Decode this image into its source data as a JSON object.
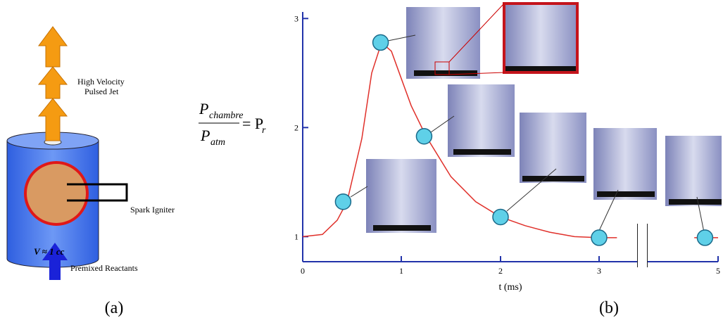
{
  "diagram": {
    "jet_label_line1": "High Velocity",
    "jet_label_line2": "Pulsed Jet",
    "igniter_label": "Spark Igniter",
    "volume_label": "V ≈ 1 cc",
    "reactants_label": "Premixed Reactants",
    "panel_label": "(a)"
  },
  "equation": {
    "numerator": "P",
    "numerator_sub": "chambre",
    "denominator": "P",
    "denominator_sub": "atm",
    "rhs": "= P",
    "rhs_sub": "r"
  },
  "chart_data": {
    "type": "line",
    "panel_label": "(b)",
    "x_label": "t (ms)",
    "x": [
      0,
      0.2,
      0.35,
      0.45,
      0.6,
      0.7,
      0.8,
      0.9,
      1.0,
      1.1,
      1.25,
      1.5,
      1.75,
      2.0,
      2.25,
      2.5,
      2.75,
      3.0,
      3.3,
      3.5,
      4.6,
      5.0
    ],
    "series": [
      {
        "color": "#e0302a",
        "values": [
          1.0,
          1.02,
          1.15,
          1.32,
          1.9,
          2.5,
          2.78,
          2.7,
          2.45,
          2.2,
          1.92,
          1.55,
          1.32,
          1.18,
          1.1,
          1.04,
          1.0,
          0.99,
          0.99,
          null,
          0.99,
          0.99
        ]
      }
    ],
    "markers": {
      "color": "#5fd0e8",
      "x": [
        0.41,
        0.79,
        1.23,
        2.0,
        3.0,
        4.78
      ],
      "values": [
        1.32,
        2.78,
        1.92,
        1.18,
        0.99,
        0.99
      ]
    },
    "xlim": [
      0,
      5
    ],
    "xticks": [
      0,
      1,
      2,
      3,
      5
    ],
    "ylim": [
      0.77,
      3.06
    ],
    "yticks": [
      1,
      2,
      3
    ],
    "axis_color": "#2233aa"
  }
}
